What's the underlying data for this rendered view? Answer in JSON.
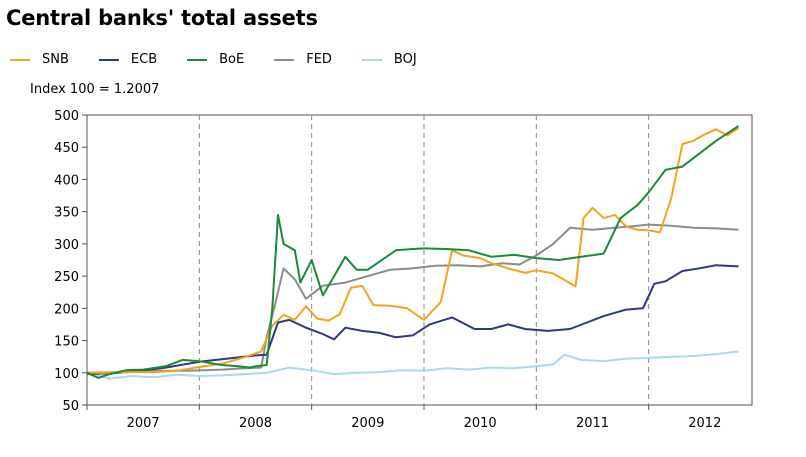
{
  "chart_data": {
    "type": "line",
    "title": "Central banks' total assets",
    "subtitle": "Index 100 = 1.2007",
    "xlabel": "",
    "ylabel": "",
    "ylim": [
      50,
      500
    ],
    "yticks": [
      50,
      100,
      150,
      200,
      250,
      300,
      350,
      400,
      450,
      500
    ],
    "xlim": [
      2007.0,
      2012.92
    ],
    "year_labels": [
      "2007",
      "2008",
      "2009",
      "2010",
      "2011",
      "2012"
    ],
    "grid": "vertical dashed at year boundaries",
    "series": [
      {
        "name": "SNB",
        "color": "#f5a21e",
        "x": [
          2007.0,
          2007.2,
          2007.4,
          2007.6,
          2007.8,
          2008.0,
          2008.2,
          2008.4,
          2008.55,
          2008.65,
          2008.75,
          2008.85,
          2008.95,
          2009.05,
          2009.15,
          2009.25,
          2009.35,
          2009.45,
          2009.55,
          2009.7,
          2009.85,
          2010.0,
          2010.15,
          2010.25,
          2010.35,
          2010.5,
          2010.6,
          2010.75,
          2010.9,
          2011.0,
          2011.15,
          2011.35,
          2011.42,
          2011.5,
          2011.6,
          2011.7,
          2011.8,
          2011.9,
          2012.0,
          2012.1,
          2012.2,
          2012.3,
          2012.4,
          2012.5,
          2012.6,
          2012.7,
          2012.8
        ],
        "y": [
          100,
          100,
          101,
          101,
          103,
          109,
          114,
          124,
          133,
          173,
          190,
          182,
          203,
          184,
          181,
          191,
          232,
          235,
          205,
          204,
          200,
          182,
          210,
          290,
          282,
          278,
          270,
          262,
          255,
          259,
          254,
          234,
          340,
          356,
          340,
          345,
          327,
          322,
          321,
          318,
          370,
          455,
          460,
          470,
          478,
          468,
          480
        ]
      },
      {
        "name": "ECB",
        "color": "#2b3a82",
        "x": [
          2007.0,
          2007.3,
          2007.5,
          2007.7,
          2008.0,
          2008.3,
          2008.5,
          2008.6,
          2008.7,
          2008.8,
          2008.95,
          2009.1,
          2009.2,
          2009.3,
          2009.45,
          2009.6,
          2009.75,
          2009.9,
          2010.05,
          2010.25,
          2010.45,
          2010.6,
          2010.75,
          2010.9,
          2011.1,
          2011.3,
          2011.45,
          2011.6,
          2011.8,
          2011.95,
          2012.05,
          2012.15,
          2012.3,
          2012.45,
          2012.6,
          2012.8
        ],
        "y": [
          98,
          100,
          104,
          108,
          117,
          123,
          127,
          128,
          178,
          182,
          170,
          160,
          152,
          170,
          165,
          162,
          155,
          158,
          175,
          186,
          168,
          168,
          175,
          168,
          165,
          168,
          178,
          188,
          198,
          200,
          238,
          242,
          258,
          262,
          267,
          265
        ]
      },
      {
        "name": "BoE",
        "color": "#1a8a38",
        "x": [
          2007.0,
          2007.1,
          2007.2,
          2007.35,
          2007.5,
          2007.7,
          2007.85,
          2008.0,
          2008.2,
          2008.35,
          2008.45,
          2008.5,
          2008.6,
          2008.65,
          2008.7,
          2008.75,
          2008.85,
          2008.9,
          2009.0,
          2009.1,
          2009.2,
          2009.3,
          2009.4,
          2009.5,
          2009.6,
          2009.75,
          2009.9,
          2010.0,
          2010.2,
          2010.4,
          2010.6,
          2010.8,
          2011.0,
          2011.2,
          2011.4,
          2011.6,
          2011.75,
          2011.9,
          2012.0,
          2012.15,
          2012.3,
          2012.45,
          2012.6,
          2012.8
        ],
        "y": [
          100,
          92,
          98,
          104,
          105,
          110,
          120,
          118,
          112,
          110,
          108,
          110,
          112,
          200,
          345,
          300,
          290,
          240,
          275,
          220,
          250,
          280,
          260,
          260,
          272,
          290,
          292,
          293,
          292,
          290,
          280,
          283,
          278,
          275,
          280,
          285,
          340,
          360,
          380,
          415,
          420,
          440,
          460,
          483
        ]
      },
      {
        "name": "FED",
        "color": "#8c8c8c",
        "x": [
          2007.0,
          2007.3,
          2007.6,
          2007.9,
          2008.2,
          2008.4,
          2008.55,
          2008.6,
          2008.68,
          2008.75,
          2008.85,
          2008.95,
          2009.1,
          2009.3,
          2009.5,
          2009.7,
          2009.9,
          2010.1,
          2010.3,
          2010.5,
          2010.7,
          2010.85,
          2011.0,
          2011.15,
          2011.3,
          2011.5,
          2011.7,
          2011.9,
          2012.0,
          2012.2,
          2012.4,
          2012.6,
          2012.8
        ],
        "y": [
          100,
          101,
          103,
          103,
          105,
          107,
          108,
          155,
          210,
          262,
          245,
          215,
          235,
          240,
          250,
          260,
          262,
          266,
          267,
          265,
          270,
          268,
          282,
          300,
          325,
          322,
          325,
          328,
          330,
          328,
          325,
          324,
          322
        ]
      },
      {
        "name": "BOJ",
        "color": "#a9d8ef",
        "x": [
          2007.0,
          2007.2,
          2007.4,
          2007.6,
          2007.8,
          2008.0,
          2008.2,
          2008.4,
          2008.6,
          2008.8,
          2009.0,
          2009.2,
          2009.4,
          2009.6,
          2009.8,
          2010.0,
          2010.2,
          2010.4,
          2010.6,
          2010.8,
          2011.0,
          2011.15,
          2011.25,
          2011.4,
          2011.6,
          2011.8,
          2012.0,
          2012.2,
          2012.4,
          2012.6,
          2012.8
        ],
        "y": [
          100,
          91,
          95,
          93,
          97,
          95,
          96,
          98,
          100,
          108,
          104,
          98,
          100,
          101,
          104,
          103,
          107,
          105,
          108,
          107,
          110,
          113,
          128,
          120,
          118,
          122,
          123,
          125,
          126,
          129,
          133
        ]
      }
    ]
  }
}
